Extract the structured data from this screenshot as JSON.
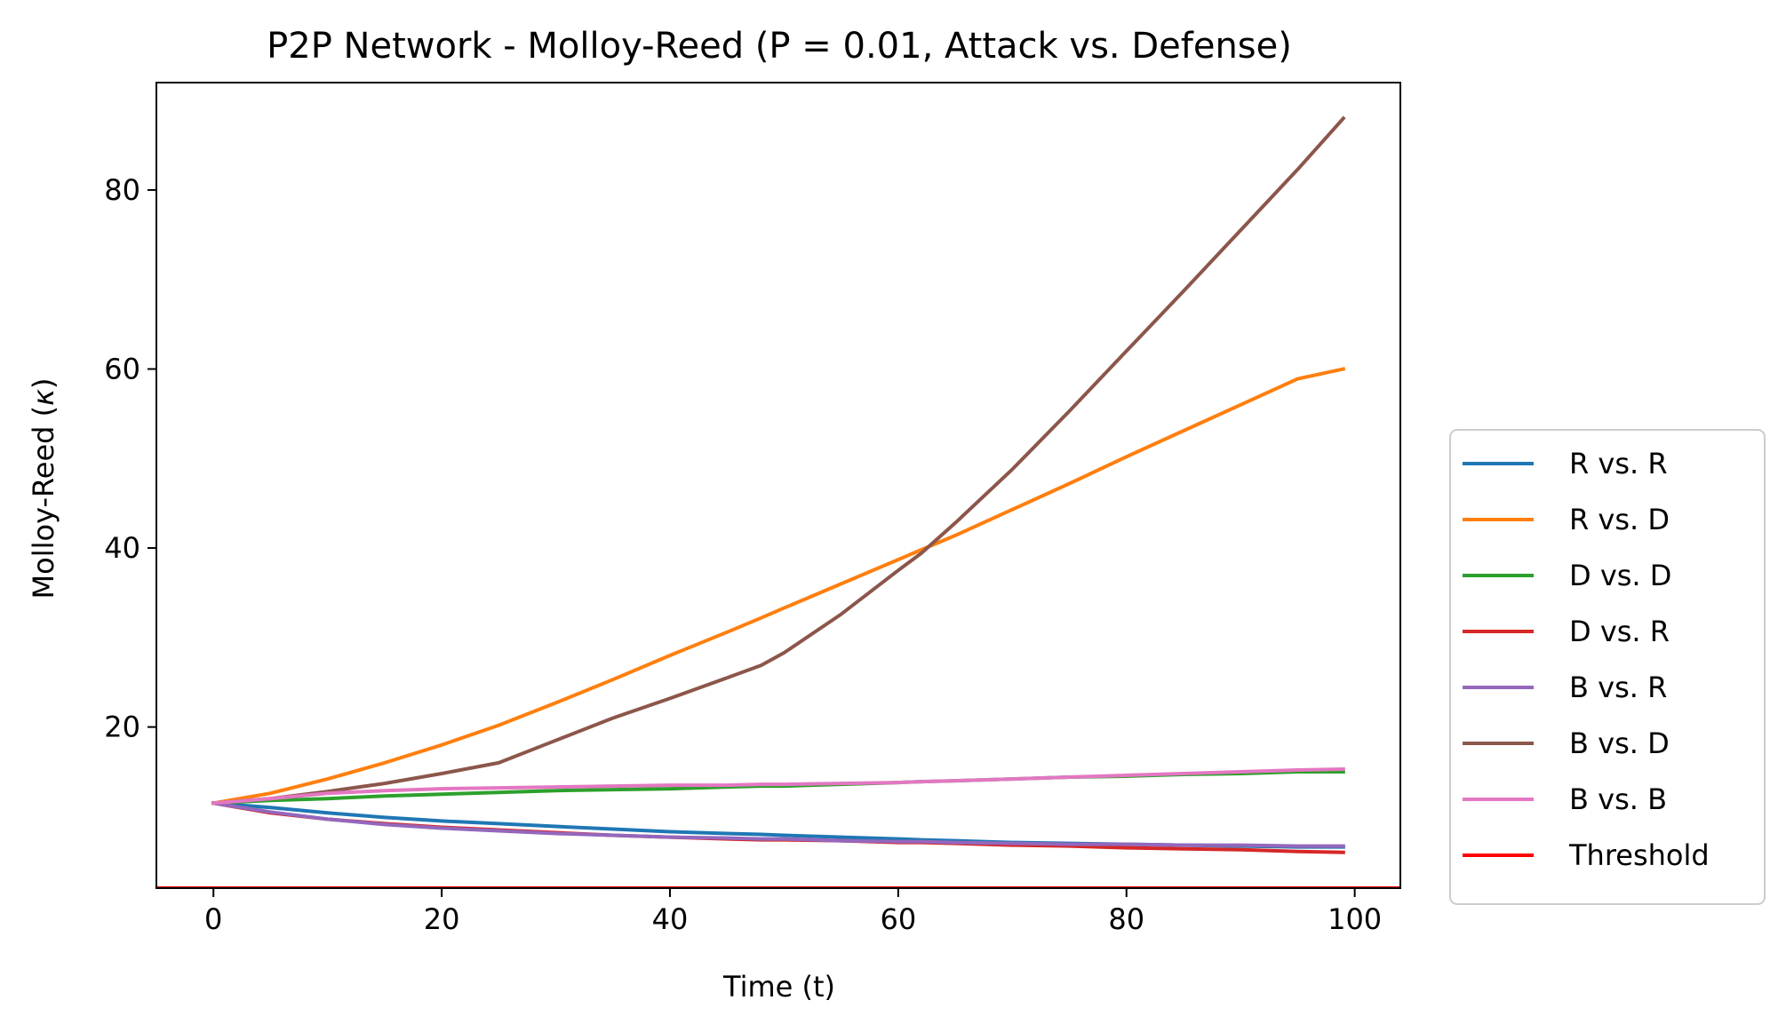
{
  "chart_data": {
    "type": "line",
    "title": "P2P Network - Molloy-Reed (P = 0.01, Attack vs. Defense)",
    "xlabel": "Time (t)",
    "ylabel_prefix": "Molloy-Reed (",
    "ylabel_symbol": "κ",
    "ylabel_suffix": ")",
    "xlim": [
      -5,
      104
    ],
    "ylim": [
      2,
      92
    ],
    "xticks": [
      0,
      20,
      40,
      60,
      80,
      100
    ],
    "yticks": [
      20,
      40,
      60,
      80
    ],
    "grid": false,
    "legend_position": "outside-right-bottom",
    "x": [
      0,
      5,
      10,
      15,
      20,
      25,
      30,
      35,
      40,
      45,
      48,
      50,
      55,
      60,
      62,
      65,
      70,
      75,
      80,
      85,
      90,
      95,
      99
    ],
    "series": [
      {
        "name": "R vs. R",
        "color": "#1f77b4",
        "values": [
          11.5,
          11.0,
          10.4,
          9.9,
          9.5,
          9.2,
          8.9,
          8.6,
          8.3,
          8.1,
          8.0,
          7.9,
          7.7,
          7.5,
          7.4,
          7.3,
          7.1,
          7.0,
          6.9,
          6.8,
          6.7,
          6.6,
          6.6
        ]
      },
      {
        "name": "R vs. D",
        "color": "#ff7f0e",
        "values": [
          11.5,
          12.6,
          14.2,
          16.0,
          18.0,
          20.2,
          22.7,
          25.3,
          28.0,
          30.6,
          32.2,
          33.3,
          36.0,
          38.7,
          39.8,
          41.4,
          44.3,
          47.2,
          50.2,
          53.1,
          56.0,
          58.9,
          60.0
        ]
      },
      {
        "name": "D vs. D",
        "color": "#2ca02c",
        "values": [
          11.5,
          11.8,
          12.0,
          12.3,
          12.5,
          12.7,
          12.9,
          13.0,
          13.1,
          13.3,
          13.4,
          13.4,
          13.6,
          13.8,
          13.9,
          14.0,
          14.2,
          14.4,
          14.5,
          14.7,
          14.8,
          15.0,
          15.0
        ]
      },
      {
        "name": "D vs. R",
        "color": "#d62728",
        "values": [
          11.5,
          10.4,
          9.7,
          9.2,
          8.8,
          8.5,
          8.2,
          7.9,
          7.7,
          7.5,
          7.4,
          7.4,
          7.3,
          7.1,
          7.1,
          7.0,
          6.8,
          6.7,
          6.5,
          6.4,
          6.3,
          6.1,
          6.0
        ]
      },
      {
        "name": "B vs. R",
        "color": "#9467bd",
        "values": [
          11.5,
          10.5,
          9.7,
          9.1,
          8.7,
          8.4,
          8.1,
          7.9,
          7.7,
          7.6,
          7.5,
          7.5,
          7.3,
          7.2,
          7.2,
          7.1,
          7.0,
          6.9,
          6.9,
          6.8,
          6.8,
          6.7,
          6.7
        ]
      },
      {
        "name": "B vs. D",
        "color": "#8c564b",
        "values": [
          11.5,
          12.0,
          12.8,
          13.7,
          14.8,
          16.0,
          18.5,
          21.0,
          23.2,
          25.5,
          26.9,
          28.3,
          32.6,
          37.5,
          39.4,
          42.8,
          48.8,
          55.3,
          62.0,
          68.7,
          75.5,
          82.3,
          88.0
        ]
      },
      {
        "name": "B vs. B",
        "color": "#e377c2",
        "values": [
          11.5,
          12.0,
          12.6,
          12.9,
          13.1,
          13.2,
          13.3,
          13.4,
          13.5,
          13.5,
          13.6,
          13.6,
          13.7,
          13.8,
          13.9,
          14.0,
          14.2,
          14.4,
          14.6,
          14.8,
          15.0,
          15.2,
          15.3
        ]
      }
    ],
    "threshold": {
      "name": "Threshold",
      "color": "#ff0000",
      "value": 2
    }
  }
}
